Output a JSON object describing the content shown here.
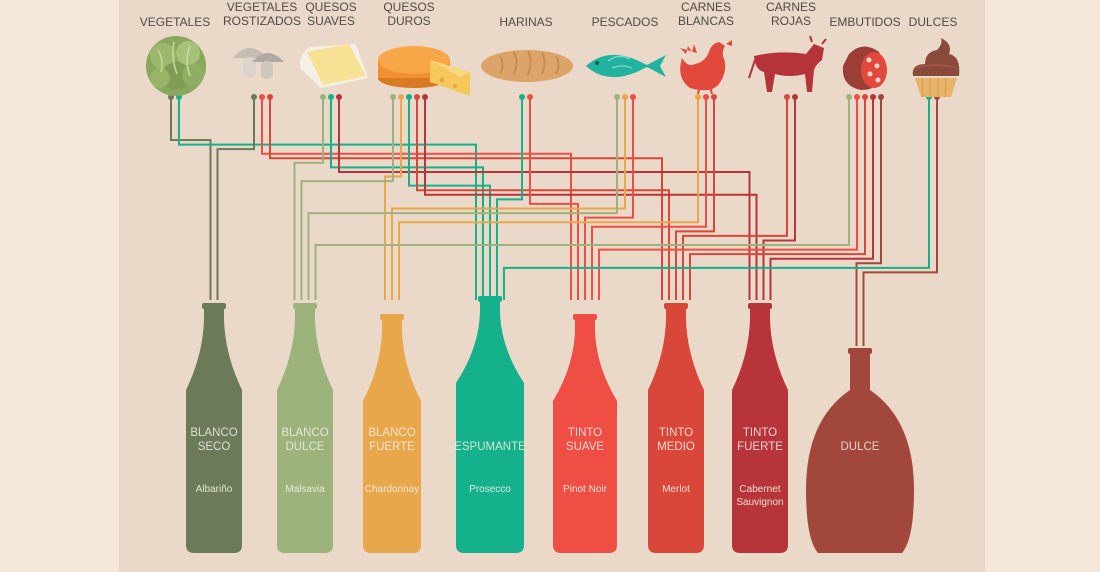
{
  "palette": {
    "blanco_seco": "#6b7b59",
    "blanco_dulce": "#9cb37b",
    "blanco_fuerte": "#e8a74a",
    "espumante": "#15b08c",
    "tinto_suave": "#ee4e44",
    "tinto_medio": "#d9473a",
    "tinto_fuerte": "#b7353a",
    "dulce": "#a2473b",
    "panel": "#ead9c8",
    "page": "#f4e7d9"
  },
  "food_categories": [
    {
      "id": "vegetales",
      "label_lines": [
        "VEGETALES"
      ],
      "icon": "lettuce-icon"
    },
    {
      "id": "vegetales-rostizados",
      "label_lines": [
        "VEGETALES",
        "ROSTIZADOS"
      ],
      "icon": "mushroom-icon"
    },
    {
      "id": "quesos-suaves",
      "label_lines": [
        "QUESOS",
        "SUAVES"
      ],
      "icon": "soft-cheese-icon"
    },
    {
      "id": "quesos-duros",
      "label_lines": [
        "QUESOS",
        "DUROS"
      ],
      "icon": "hard-cheese-icon"
    },
    {
      "id": "harinas",
      "label_lines": [
        "HARINAS"
      ],
      "icon": "bread-icon"
    },
    {
      "id": "pescados",
      "label_lines": [
        "PESCADOS"
      ],
      "icon": "fish-icon"
    },
    {
      "id": "carnes-blancas",
      "label_lines": [
        "CARNES",
        "BLANCAS"
      ],
      "icon": "chicken-icon"
    },
    {
      "id": "carnes-rojas",
      "label_lines": [
        "CARNES",
        "ROJAS"
      ],
      "icon": "cow-icon"
    },
    {
      "id": "embutidos",
      "label_lines": [
        "EMBUTIDOS"
      ],
      "icon": "sausage-icon"
    },
    {
      "id": "dulces",
      "label_lines": [
        "DULCES"
      ],
      "icon": "cupcake-icon"
    }
  ],
  "wines": [
    {
      "id": "blanco_seco",
      "type_lines": [
        "BLANCO",
        "SECO"
      ],
      "grape_lines": [
        "Albariño"
      ]
    },
    {
      "id": "blanco_dulce",
      "type_lines": [
        "BLANCO",
        "DULCE"
      ],
      "grape_lines": [
        "Malsavia"
      ]
    },
    {
      "id": "blanco_fuerte",
      "type_lines": [
        "BLANCO",
        "FUERTE"
      ],
      "grape_lines": [
        "Chardonnay"
      ]
    },
    {
      "id": "espumante",
      "type_lines": [
        "ESPUMANTE"
      ],
      "grape_lines": [
        "Prosecco"
      ]
    },
    {
      "id": "tinto_suave",
      "type_lines": [
        "TINTO",
        "SUAVE"
      ],
      "grape_lines": [
        "Pinot Noir"
      ]
    },
    {
      "id": "tinto_medio",
      "type_lines": [
        "TINTO",
        "MEDIO"
      ],
      "grape_lines": [
        "Merlot"
      ]
    },
    {
      "id": "tinto_fuerte",
      "type_lines": [
        "TINTO",
        "FUERTE"
      ],
      "grape_lines": [
        "Cabernet",
        "Sauvignon"
      ]
    },
    {
      "id": "dulce",
      "type_lines": [
        "DULCE"
      ],
      "grape_lines": []
    }
  ],
  "pairings": [
    {
      "food": "vegetales",
      "wine": "blanco_seco"
    },
    {
      "food": "vegetales",
      "wine": "espumante"
    },
    {
      "food": "vegetales-rostizados",
      "wine": "blanco_seco"
    },
    {
      "food": "vegetales-rostizados",
      "wine": "tinto_suave"
    },
    {
      "food": "vegetales-rostizados",
      "wine": "tinto_medio"
    },
    {
      "food": "quesos-suaves",
      "wine": "blanco_dulce"
    },
    {
      "food": "quesos-suaves",
      "wine": "espumante"
    },
    {
      "food": "quesos-suaves",
      "wine": "tinto_fuerte"
    },
    {
      "food": "quesos-duros",
      "wine": "blanco_fuerte"
    },
    {
      "food": "quesos-duros",
      "wine": "blanco_dulce"
    },
    {
      "food": "quesos-duros",
      "wine": "espumante"
    },
    {
      "food": "quesos-duros",
      "wine": "tinto_medio"
    },
    {
      "food": "quesos-duros",
      "wine": "tinto_fuerte"
    },
    {
      "food": "harinas",
      "wine": "espumante"
    },
    {
      "food": "harinas",
      "wine": "tinto_suave"
    },
    {
      "food": "pescados",
      "wine": "blanco_fuerte"
    },
    {
      "food": "pescados",
      "wine": "blanco_dulce"
    },
    {
      "food": "pescados",
      "wine": "tinto_suave"
    },
    {
      "food": "carnes-blancas",
      "wine": "blanco_fuerte"
    },
    {
      "food": "carnes-blancas",
      "wine": "tinto_suave"
    },
    {
      "food": "carnes-blancas",
      "wine": "tinto_medio"
    },
    {
      "food": "carnes-rojas",
      "wine": "tinto_medio"
    },
    {
      "food": "carnes-rojas",
      "wine": "tinto_fuerte"
    },
    {
      "food": "embutidos",
      "wine": "blanco_dulce"
    },
    {
      "food": "embutidos",
      "wine": "tinto_suave"
    },
    {
      "food": "embutidos",
      "wine": "tinto_medio"
    },
    {
      "food": "embutidos",
      "wine": "tinto_fuerte"
    },
    {
      "food": "embutidos",
      "wine": "dulce"
    },
    {
      "food": "dulces",
      "wine": "espumante"
    },
    {
      "food": "dulces",
      "wine": "dulce"
    }
  ]
}
